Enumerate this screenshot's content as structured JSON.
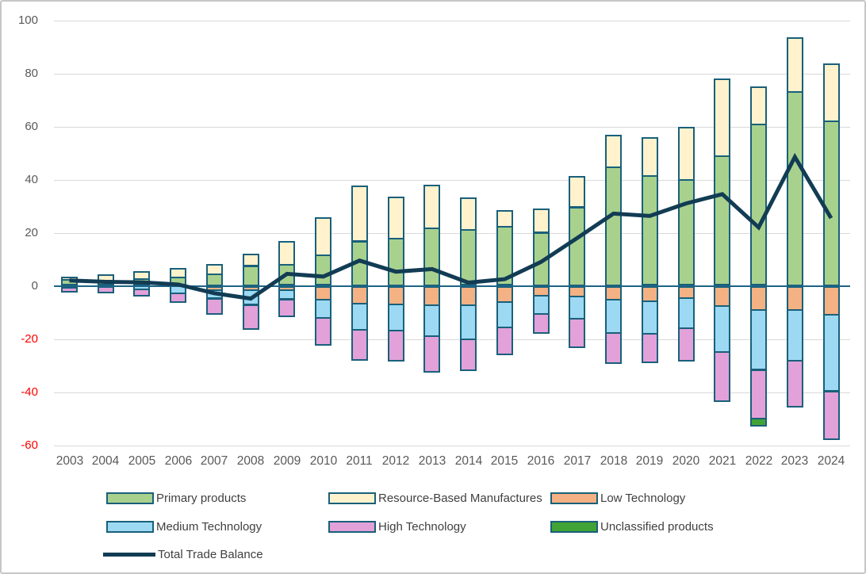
{
  "chart_data": {
    "type": "bar",
    "subtype": "stacked-bar-with-line-overlay",
    "title": "",
    "xlabel": "",
    "ylabel": "",
    "ylim": [
      -60,
      100
    ],
    "ytick_step": 20,
    "yticks": [
      100,
      80,
      60,
      40,
      20,
      0,
      -20,
      -40,
      -60
    ],
    "grid": "horizontal",
    "legend_position": "bottom-left",
    "categories": [
      "2003",
      "2004",
      "2005",
      "2006",
      "2007",
      "2008",
      "2009",
      "2010",
      "2011",
      "2012",
      "2013",
      "2014",
      "2015",
      "2016",
      "2017",
      "2018",
      "2019",
      "2020",
      "2021",
      "2022",
      "2023",
      "2024"
    ],
    "series": [
      {
        "name": "Primary products",
        "type": "bar",
        "color": "#a9d18e",
        "values": [
          2.4,
          2.2,
          2.7,
          3.4,
          4.7,
          7.7,
          8.2,
          11.7,
          17.0,
          18.2,
          22.0,
          21.3,
          22.5,
          20.2,
          29.8,
          45.0,
          41.6,
          40.1,
          49.1,
          61.0,
          73.3,
          62.3
        ]
      },
      {
        "name": "Resource-Based Manufactures",
        "type": "bar",
        "color": "#fff2cc",
        "values": [
          0.9,
          2.0,
          2.7,
          3.2,
          3.5,
          4.3,
          8.7,
          14.0,
          20.7,
          15.5,
          16.0,
          11.9,
          6.0,
          8.8,
          11.4,
          11.8,
          14.4,
          19.7,
          29.1,
          14.0,
          20.4,
          21.4
        ]
      },
      {
        "name": "Low Technology",
        "type": "bar",
        "color": "#f4b183",
        "values": [
          -0.3,
          -0.3,
          -0.4,
          -0.5,
          -2.0,
          -2.0,
          -2.0,
          -5.5,
          -7.0,
          -7.3,
          -7.5,
          -7.7,
          -6.3,
          -4.0,
          -4.3,
          -5.5,
          -6.0,
          -5.0,
          -7.8,
          -9.5,
          -9.3,
          -11.3
        ]
      },
      {
        "name": "Medium Technology",
        "type": "bar",
        "color": "#9dd9f3",
        "values": [
          -0.6,
          -0.4,
          -1.2,
          -2.6,
          -3.1,
          -5.5,
          -3.4,
          -7.0,
          -9.8,
          -10.0,
          -11.8,
          -12.8,
          -9.7,
          -7.0,
          -8.5,
          -12.5,
          -12.3,
          -11.3,
          -17.5,
          -22.5,
          -19.2,
          -28.7
        ]
      },
      {
        "name": "High Technology",
        "type": "bar",
        "color": "#e2a1d8",
        "values": [
          -1.4,
          -2.0,
          -2.4,
          -3.2,
          -5.7,
          -9.0,
          -6.4,
          -10.2,
          -11.2,
          -11.4,
          -13.4,
          -11.5,
          -10.0,
          -7.3,
          -10.7,
          -11.2,
          -10.7,
          -12.3,
          -18.5,
          -18.4,
          -17.3,
          -18.0
        ]
      },
      {
        "name": "Unclassified products",
        "type": "bar",
        "color": "#41a335",
        "values": [
          0,
          0,
          0,
          0,
          0,
          0,
          0,
          0,
          0,
          0,
          0,
          0,
          0,
          0,
          0,
          0,
          0,
          0,
          0,
          -2.8,
          0,
          0
        ]
      },
      {
        "name": "Total Trade Balance",
        "type": "line",
        "color": "#123c54",
        "values": [
          2.0,
          1.5,
          1.3,
          0.5,
          -2.8,
          -4.8,
          4.5,
          3.5,
          9.5,
          5.3,
          6.3,
          1.2,
          2.5,
          9.0,
          18.0,
          27.2,
          26.3,
          31.0,
          34.5,
          22.0,
          48.5,
          25.5
        ]
      }
    ]
  },
  "legend": {
    "items": [
      {
        "label": "Primary products",
        "swatch": "bar",
        "color": "#a9d18e"
      },
      {
        "label": "Resource-Based Manufactures",
        "swatch": "bar",
        "color": "#fff2cc"
      },
      {
        "label": "Low Technology",
        "swatch": "bar",
        "color": "#f4b183"
      },
      {
        "label": "Medium Technology",
        "swatch": "bar",
        "color": "#9dd9f3"
      },
      {
        "label": "High Technology",
        "swatch": "bar",
        "color": "#e2a1d8"
      },
      {
        "label": "Unclassified products",
        "swatch": "bar",
        "color": "#41a335"
      },
      {
        "label": "Total Trade Balance",
        "swatch": "line",
        "color": "#123c54"
      }
    ]
  },
  "style": {
    "bar_border": "#19607b",
    "zero_axis": "#1c6485",
    "gridline": "#d9d9d9",
    "tick_color": "#595959",
    "negative_tick_color": "#ff0000",
    "legend_text": "#404040",
    "background": "#ffffff"
  }
}
